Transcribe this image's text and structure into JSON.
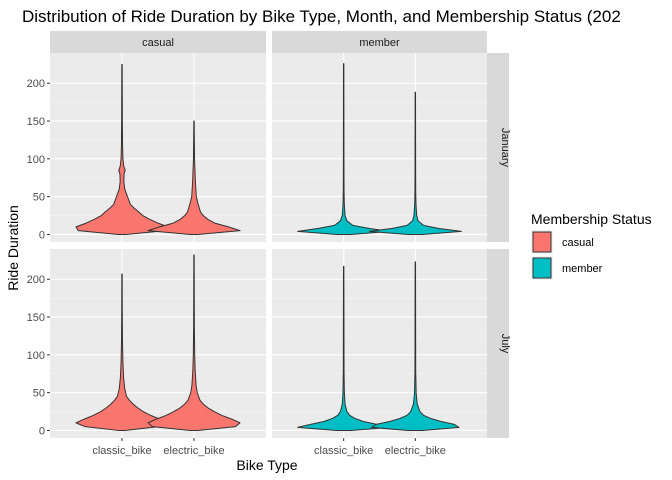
{
  "chart_data": {
    "type": "violin",
    "title": "Distribution of Ride Duration by Bike Type, Month, and Membership Status (202",
    "xlabel": "Bike Type",
    "ylabel": "Ride Duration",
    "categories": [
      "classic_bike",
      "electric_bike"
    ],
    "facet_columns": [
      "casual",
      "member"
    ],
    "facet_rows": [
      "January",
      "July"
    ],
    "y_ticks": [
      0,
      50,
      100,
      150,
      200
    ],
    "ylim": [
      -10,
      240
    ],
    "grid": true,
    "legend": {
      "title": "Membership Status",
      "position": "right",
      "entries": [
        {
          "label": "casual",
          "color": "#F8766D"
        },
        {
          "label": "member",
          "color": "#00BFC4"
        }
      ]
    },
    "panels": [
      {
        "row": "January",
        "column": "casual",
        "violins": [
          {
            "category": "classic_bike",
            "max": 225,
            "profile": [
              [
                0,
                0.08
              ],
              [
                5,
                0.95
              ],
              [
                10,
                1.0
              ],
              [
                15,
                0.78
              ],
              [
                20,
                0.6
              ],
              [
                25,
                0.45
              ],
              [
                30,
                0.36
              ],
              [
                35,
                0.26
              ],
              [
                40,
                0.18
              ],
              [
                50,
                0.12
              ],
              [
                60,
                0.06
              ],
              [
                70,
                0.04
              ],
              [
                80,
                0.045
              ],
              [
                85,
                0.07
              ],
              [
                90,
                0.04
              ],
              [
                100,
                0.02
              ],
              [
                120,
                0.012
              ],
              [
                150,
                0.008
              ],
              [
                190,
                0.006
              ],
              [
                225,
                0.004
              ]
            ]
          },
          {
            "category": "electric_bike",
            "max": 150,
            "profile": [
              [
                0,
                0.08
              ],
              [
                5,
                1.0
              ],
              [
                10,
                0.75
              ],
              [
                15,
                0.45
              ],
              [
                20,
                0.3
              ],
              [
                25,
                0.2
              ],
              [
                30,
                0.14
              ],
              [
                40,
                0.09
              ],
              [
                50,
                0.05
              ],
              [
                70,
                0.03
              ],
              [
                100,
                0.012
              ],
              [
                150,
                0.004
              ]
            ]
          }
        ]
      },
      {
        "row": "January",
        "column": "member",
        "violins": [
          {
            "category": "classic_bike",
            "max": 226,
            "profile": [
              [
                0,
                0.15
              ],
              [
                4,
                1.0
              ],
              [
                8,
                0.55
              ],
              [
                12,
                0.2
              ],
              [
                18,
                0.07
              ],
              [
                25,
                0.03
              ],
              [
                40,
                0.014
              ],
              [
                60,
                0.008
              ],
              [
                100,
                0.006
              ],
              [
                226,
                0.004
              ]
            ]
          },
          {
            "category": "electric_bike",
            "max": 188,
            "profile": [
              [
                0,
                0.15
              ],
              [
                4,
                1.0
              ],
              [
                8,
                0.5
              ],
              [
                12,
                0.18
              ],
              [
                18,
                0.06
              ],
              [
                25,
                0.03
              ],
              [
                40,
                0.014
              ],
              [
                60,
                0.008
              ],
              [
                100,
                0.006
              ],
              [
                188,
                0.004
              ]
            ]
          }
        ]
      },
      {
        "row": "July",
        "column": "casual",
        "violins": [
          {
            "category": "classic_bike",
            "max": 207,
            "profile": [
              [
                0,
                0.08
              ],
              [
                5,
                0.8
              ],
              [
                10,
                1.0
              ],
              [
                15,
                0.82
              ],
              [
                20,
                0.62
              ],
              [
                25,
                0.46
              ],
              [
                30,
                0.34
              ],
              [
                35,
                0.24
              ],
              [
                40,
                0.16
              ],
              [
                45,
                0.1
              ],
              [
                55,
                0.06
              ],
              [
                70,
                0.035
              ],
              [
                90,
                0.02
              ],
              [
                120,
                0.01
              ],
              [
                160,
                0.006
              ],
              [
                207,
                0.004
              ]
            ]
          },
          {
            "category": "electric_bike",
            "max": 232,
            "profile": [
              [
                0,
                0.08
              ],
              [
                5,
                0.9
              ],
              [
                10,
                1.0
              ],
              [
                15,
                0.82
              ],
              [
                20,
                0.6
              ],
              [
                25,
                0.44
              ],
              [
                30,
                0.3
              ],
              [
                35,
                0.2
              ],
              [
                40,
                0.13
              ],
              [
                50,
                0.07
              ],
              [
                60,
                0.045
              ],
              [
                80,
                0.025
              ],
              [
                100,
                0.015
              ],
              [
                140,
                0.008
              ],
              [
                232,
                0.004
              ]
            ]
          }
        ]
      },
      {
        "row": "July",
        "column": "member",
        "violins": [
          {
            "category": "classic_bike",
            "max": 217,
            "profile": [
              [
                0,
                0.15
              ],
              [
                4,
                1.0
              ],
              [
                8,
                0.72
              ],
              [
                12,
                0.42
              ],
              [
                16,
                0.24
              ],
              [
                20,
                0.13
              ],
              [
                25,
                0.07
              ],
              [
                35,
                0.03
              ],
              [
                50,
                0.015
              ],
              [
                80,
                0.008
              ],
              [
                217,
                0.004
              ]
            ]
          },
          {
            "category": "electric_bike",
            "max": 223,
            "profile": [
              [
                0,
                0.15
              ],
              [
                4,
                0.95
              ],
              [
                8,
                0.85
              ],
              [
                12,
                0.55
              ],
              [
                16,
                0.33
              ],
              [
                20,
                0.18
              ],
              [
                25,
                0.1
              ],
              [
                35,
                0.04
              ],
              [
                50,
                0.018
              ],
              [
                80,
                0.008
              ],
              [
                223,
                0.004
              ]
            ]
          }
        ]
      }
    ]
  }
}
